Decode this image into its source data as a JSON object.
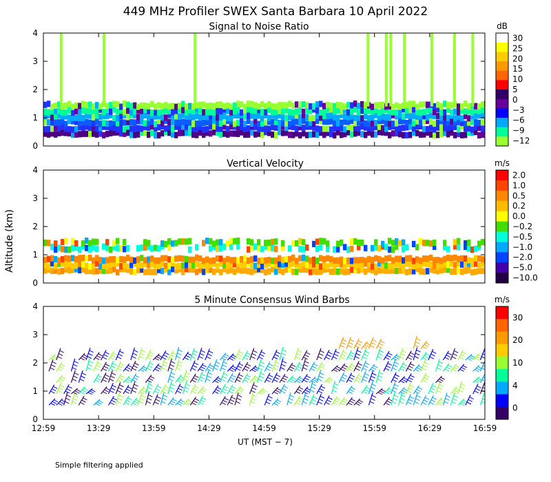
{
  "chart_data": {
    "type": "heatmap",
    "title": "449 MHz Profiler SWEX Santa Barbara 10 April 2022",
    "ylabel": "Altitude (km)",
    "xlabel": "UT  (MST − 7)",
    "xlim": [
      "12:59",
      "16:59"
    ],
    "ylim": [
      0,
      4
    ],
    "xticks": [
      "12:59",
      "13:29",
      "13:59",
      "14:29",
      "14:59",
      "15:29",
      "15:59",
      "16:29",
      "16:59"
    ],
    "yticks": [
      "0",
      "1",
      "2",
      "3",
      "4"
    ],
    "footnote": "Simple filtering applied",
    "panels": [
      {
        "name": "snr",
        "subtitle": "Signal to Noise Ratio",
        "unit": "dB",
        "colorbar_labels": [
          "30",
          "25",
          "20",
          "15",
          "10",
          "5",
          "0",
          "−3",
          "−6",
          "−9",
          "−12"
        ],
        "colorbar_colors": [
          "#ffffff",
          "#ffff00",
          "#ffcc00",
          "#ff9900",
          "#ff6600",
          "#ff0000",
          "#330066",
          "#660099",
          "#0000ff",
          "#00aaff",
          "#00ff99",
          "#99ff33"
        ],
        "data": [
          {
            "alt_km": 0.45,
            "color": "#4b0082"
          },
          {
            "alt_km": 0.65,
            "color": "#2233ff"
          },
          {
            "alt_km": 0.85,
            "color": "#0a5cff"
          },
          {
            "alt_km": 1.05,
            "color": "#00aaff"
          },
          {
            "alt_km": 1.25,
            "color": "#00ff99"
          },
          {
            "alt_km": 1.45,
            "color": "#99ff33"
          }
        ]
      },
      {
        "name": "vertical-velocity",
        "subtitle": "Vertical Velocity",
        "unit": "m/s",
        "colorbar_labels": [
          "2.0",
          "1.0",
          "0.5",
          "0.2",
          "0.0",
          "−0.2",
          "−0.5",
          "−1.0",
          "−2.0",
          "−5.0",
          "−10.0"
        ],
        "colorbar_colors": [
          "#ff0000",
          "#ff4400",
          "#ff8800",
          "#ffbb00",
          "#ffff00",
          "#44dd00",
          "#00ffdd",
          "#00aaff",
          "#0044ff",
          "#4400aa",
          "#220044"
        ],
        "data": [
          {
            "alt_km": 0.45,
            "color": "#ffaa00"
          },
          {
            "alt_km": 0.65,
            "color": "#ffcc00"
          },
          {
            "alt_km": 0.85,
            "color": "#ff8800"
          },
          {
            "alt_km": 1.25,
            "color": "#00ffdd"
          },
          {
            "alt_km": 1.45,
            "color": "#44dd00"
          }
        ]
      },
      {
        "name": "wind-barbs",
        "subtitle": "5 Minute Consensus Wind Barbs",
        "unit": "m/s",
        "colorbar_labels": [
          "30",
          "20",
          "10",
          "4",
          "0"
        ],
        "colorbar_colors": [
          "#ff0000",
          "#ff6600",
          "#ff9900",
          "#ffcc00",
          "#99ff33",
          "#00ff99",
          "#00aaff",
          "#0000ff",
          "#330066"
        ],
        "speed_bins_ms": [
          0,
          4,
          10,
          20,
          30
        ],
        "levels_km": [
          0.5,
          0.9,
          1.3,
          1.7,
          2.1,
          2.5
        ]
      }
    ]
  }
}
